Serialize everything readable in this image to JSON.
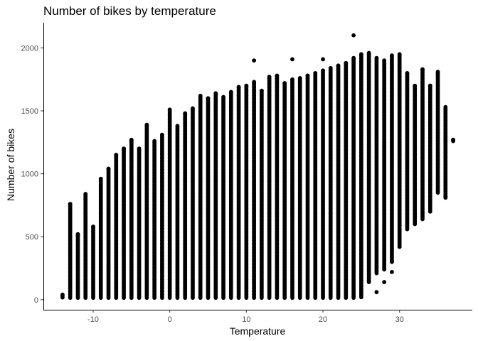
{
  "chart_data": {
    "type": "scatter",
    "title": "Number of bikes by temperature",
    "xlabel": "Temperature",
    "ylabel": "Number of bikes",
    "xlim": [
      -16.5,
      39.5
    ],
    "ylim": [
      -80,
      2200
    ],
    "xticks": [
      -10,
      0,
      10,
      20,
      30
    ],
    "yticks": [
      0,
      500,
      1000,
      1500,
      2000
    ],
    "grid": false,
    "legend": "none",
    "point_color": "#000000",
    "columns": [
      {
        "x": -14,
        "ymin": 18,
        "ymax": 40
      },
      {
        "x": -13,
        "ymin": 15,
        "ymax": 760
      },
      {
        "x": -12,
        "ymin": 15,
        "ymax": 520
      },
      {
        "x": -11,
        "ymin": 15,
        "ymax": 840
      },
      {
        "x": -10,
        "ymin": 15,
        "ymax": 580
      },
      {
        "x": -9,
        "ymin": 15,
        "ymax": 960
      },
      {
        "x": -8,
        "ymin": 15,
        "ymax": 1040
      },
      {
        "x": -7,
        "ymin": 15,
        "ymax": 1150
      },
      {
        "x": -6,
        "ymin": 15,
        "ymax": 1200
      },
      {
        "x": -5,
        "ymin": 15,
        "ymax": 1270
      },
      {
        "x": -4,
        "ymin": 15,
        "ymax": 1200
      },
      {
        "x": -3,
        "ymin": 15,
        "ymax": 1390
      },
      {
        "x": -2,
        "ymin": 15,
        "ymax": 1260
      },
      {
        "x": -1,
        "ymin": 15,
        "ymax": 1310
      },
      {
        "x": 0,
        "ymin": 15,
        "ymax": 1510
      },
      {
        "x": 1,
        "ymin": 15,
        "ymax": 1380
      },
      {
        "x": 2,
        "ymin": 15,
        "ymax": 1480
      },
      {
        "x": 3,
        "ymin": 15,
        "ymax": 1520
      },
      {
        "x": 4,
        "ymin": 15,
        "ymax": 1620
      },
      {
        "x": 5,
        "ymin": 15,
        "ymax": 1600
      },
      {
        "x": 6,
        "ymin": 15,
        "ymax": 1640
      },
      {
        "x": 7,
        "ymin": 15,
        "ymax": 1610
      },
      {
        "x": 8,
        "ymin": 15,
        "ymax": 1650
      },
      {
        "x": 9,
        "ymin": 15,
        "ymax": 1690
      },
      {
        "x": 10,
        "ymin": 15,
        "ymax": 1700
      },
      {
        "x": 11,
        "ymin": 15,
        "ymax": 1730
      },
      {
        "x": 12,
        "ymin": 15,
        "ymax": 1660
      },
      {
        "x": 13,
        "ymin": 15,
        "ymax": 1770
      },
      {
        "x": 14,
        "ymin": 15,
        "ymax": 1780
      },
      {
        "x": 15,
        "ymin": 15,
        "ymax": 1720
      },
      {
        "x": 16,
        "ymin": 15,
        "ymax": 1750
      },
      {
        "x": 17,
        "ymin": 15,
        "ymax": 1760
      },
      {
        "x": 18,
        "ymin": 15,
        "ymax": 1780
      },
      {
        "x": 19,
        "ymin": 15,
        "ymax": 1800
      },
      {
        "x": 20,
        "ymin": 15,
        "ymax": 1820
      },
      {
        "x": 21,
        "ymin": 15,
        "ymax": 1840
      },
      {
        "x": 22,
        "ymin": 15,
        "ymax": 1860
      },
      {
        "x": 23,
        "ymin": 15,
        "ymax": 1880
      },
      {
        "x": 24,
        "ymin": 15,
        "ymax": 1920
      },
      {
        "x": 25,
        "ymin": 20,
        "ymax": 1950
      },
      {
        "x": 26,
        "ymin": 140,
        "ymax": 1960
      },
      {
        "x": 27,
        "ymin": 210,
        "ymax": 1920
      },
      {
        "x": 28,
        "ymin": 240,
        "ymax": 1900
      },
      {
        "x": 29,
        "ymin": 300,
        "ymax": 1940
      },
      {
        "x": 30,
        "ymin": 420,
        "ymax": 1950
      },
      {
        "x": 31,
        "ymin": 560,
        "ymax": 1800
      },
      {
        "x": 32,
        "ymin": 600,
        "ymax": 1700
      },
      {
        "x": 33,
        "ymin": 640,
        "ymax": 1830
      },
      {
        "x": 34,
        "ymin": 700,
        "ymax": 1700
      },
      {
        "x": 35,
        "ymin": 860,
        "ymax": 1800
      },
      {
        "x": 36,
        "ymin": 810,
        "ymax": 1530
      },
      {
        "x": 37,
        "ymin": 1260,
        "ymax": 1270
      }
    ],
    "outliers": [
      {
        "x": 24,
        "y": 2100
      },
      {
        "x": 20,
        "y": 1910
      },
      {
        "x": 16,
        "y": 1910
      },
      {
        "x": 11,
        "y": 1900
      },
      {
        "x": -13,
        "y": 760
      },
      {
        "x": -12,
        "y": 510
      },
      {
        "x": -11,
        "y": 830
      },
      {
        "x": -11,
        "y": 800
      },
      {
        "x": -9,
        "y": 960
      },
      {
        "x": -8,
        "y": 1040
      },
      {
        "x": -7,
        "y": 1150
      },
      {
        "x": -6,
        "y": 1200
      },
      {
        "x": 36,
        "y": 1260
      },
      {
        "x": 37,
        "y": 1270
      },
      {
        "x": 35,
        "y": 1810
      },
      {
        "x": 34,
        "y": 1700
      },
      {
        "x": 36,
        "y": 820
      },
      {
        "x": 35,
        "y": 850
      },
      {
        "x": 34,
        "y": 780
      },
      {
        "x": 29,
        "y": 220
      },
      {
        "x": 28,
        "y": 140
      },
      {
        "x": 27,
        "y": 60
      },
      {
        "x": 30,
        "y": 420
      }
    ]
  }
}
